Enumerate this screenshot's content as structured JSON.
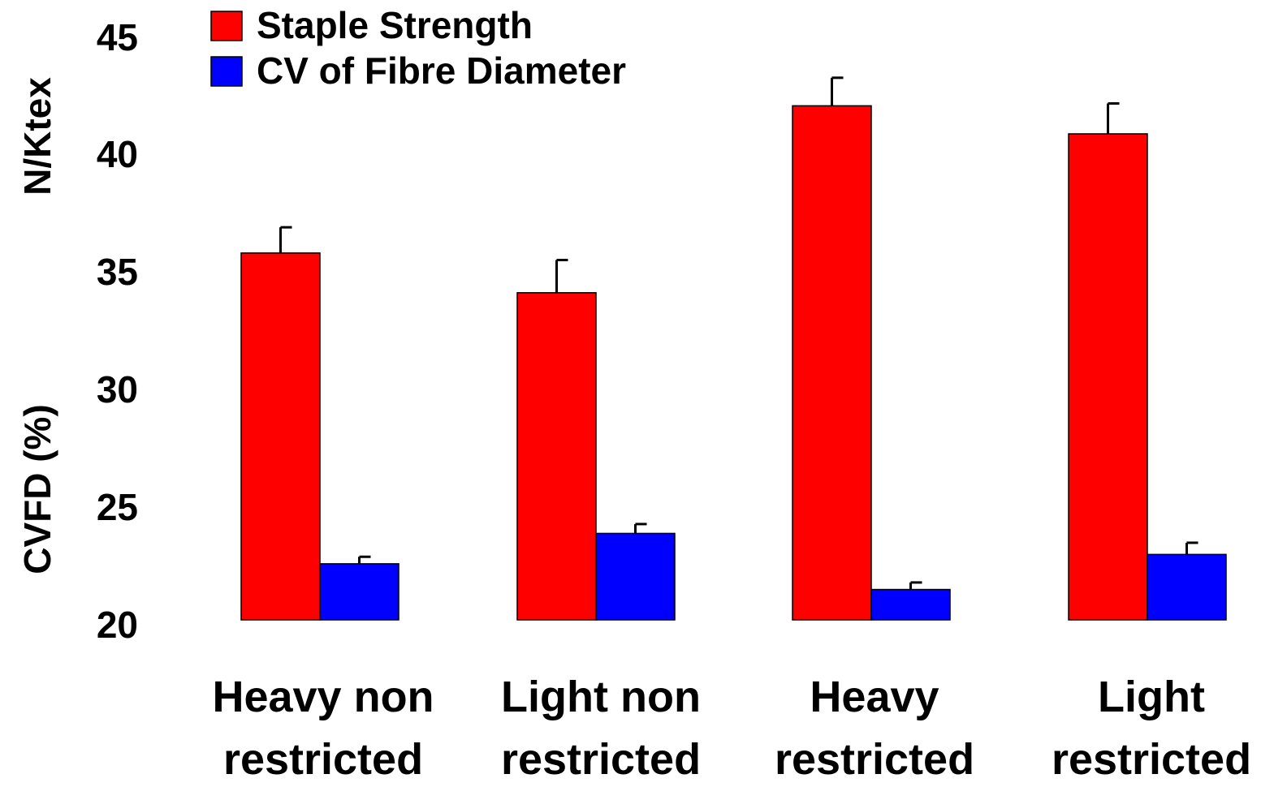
{
  "chart_data": {
    "type": "bar",
    "categories": [
      [
        "Heavy non",
        "restricted"
      ],
      [
        "Light non",
        "restricted"
      ],
      [
        "Heavy",
        "restricted"
      ],
      [
        "Light",
        "restricted"
      ]
    ],
    "series": [
      {
        "name": "Staple Strength",
        "color": "#ff0000",
        "values": [
          35.7,
          34.0,
          42.0,
          40.8
        ],
        "errors": [
          1.1,
          1.4,
          1.2,
          1.3
        ]
      },
      {
        "name": "CV of Fibre Diameter",
        "color": "#0000ff",
        "values": [
          22.4,
          23.7,
          21.3,
          22.8
        ],
        "errors": [
          0.3,
          0.4,
          0.3,
          0.5
        ]
      }
    ],
    "ylim": [
      20,
      45
    ],
    "yticks": [
      "20",
      "25",
      "30",
      "35",
      "40",
      "45"
    ],
    "ylabel_top": "N/Ktex",
    "ylabel_bottom": "CVFD (%)",
    "legend_position": "top-left",
    "grid": false
  }
}
